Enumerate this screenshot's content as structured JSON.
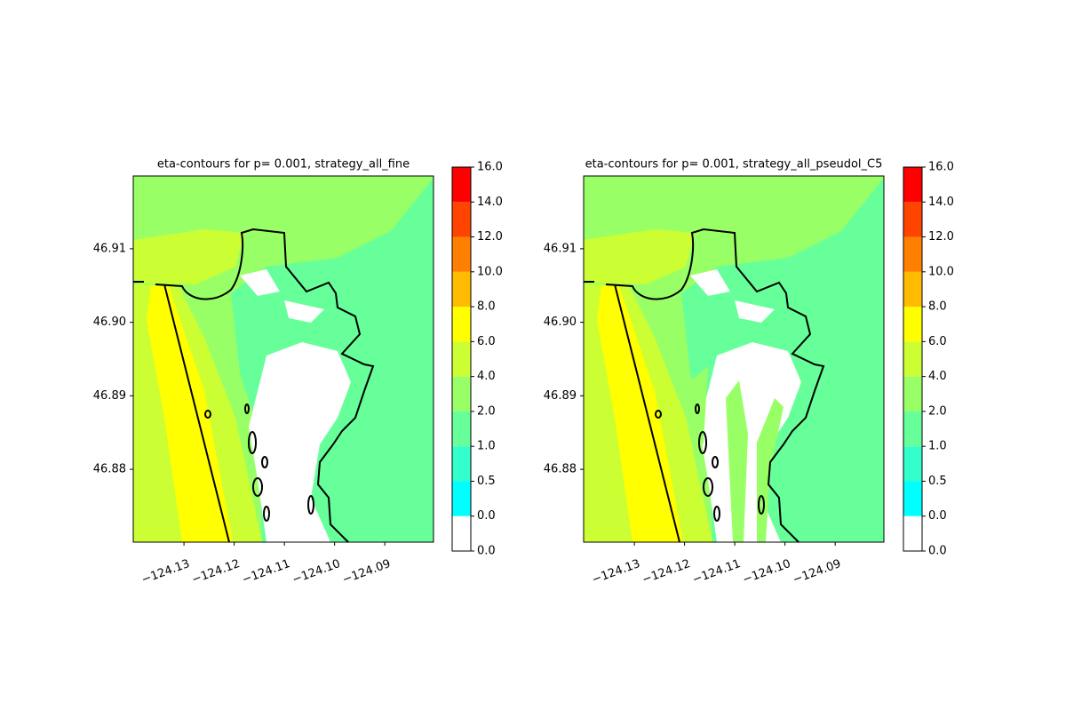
{
  "chart_data": [
    {
      "type": "contourf",
      "title": "eta-contours for p= 0.001, strategy_all_fine",
      "xlim": [
        -124.1401,
        -124.0803
      ],
      "ylim": [
        46.8701,
        46.9199
      ],
      "xticks": [
        {
          "value": -124.13,
          "label": "−124.13"
        },
        {
          "value": -124.12,
          "label": "−124.12"
        },
        {
          "value": -124.11,
          "label": "−124.11"
        },
        {
          "value": -124.1,
          "label": "−124.10"
        },
        {
          "value": -124.09,
          "label": "−124.09"
        }
      ],
      "yticks": [
        46.91,
        {
          "value": 46.9,
          "label": "46.90"
        },
        46.89,
        46.88
      ],
      "levels": [
        {
          "value": 0,
          "label": "0.0"
        },
        {
          "value": 0,
          "label": "0.0"
        },
        0.5,
        {
          "value": 1,
          "label": "1.0"
        },
        {
          "value": 2,
          "label": "2.0"
        },
        {
          "value": 4,
          "label": "4.0"
        },
        {
          "value": 6,
          "label": "6.0"
        },
        {
          "value": 8,
          "label": "8.0"
        },
        {
          "value": 10,
          "label": "10.0"
        },
        {
          "value": 12,
          "label": "12.0"
        },
        {
          "value": 14,
          "label": "14.0"
        },
        {
          "value": 16,
          "label": "16.0"
        }
      ],
      "colors": [
        "#ffffff",
        "#00ffff",
        "#33ffcc",
        "#66ff99",
        "#99ff66",
        "#ccff33",
        "#ffff00",
        "#ffbb00",
        "#ff8000",
        "#ff4400",
        "#ff0000"
      ]
    },
    {
      "type": "contourf",
      "title": "eta-contours for p= 0.001, strategy_all_pseudol_C5",
      "xlim": [
        -124.1401,
        -124.0803
      ],
      "ylim": [
        46.8701,
        46.9199
      ],
      "xticks": [
        {
          "value": -124.13,
          "label": "−124.13"
        },
        {
          "value": -124.12,
          "label": "−124.12"
        },
        {
          "value": -124.11,
          "label": "−124.11"
        },
        {
          "value": -124.1,
          "label": "−124.10"
        },
        {
          "value": -124.09,
          "label": "−124.09"
        }
      ],
      "yticks": [
        46.91,
        {
          "value": 46.9,
          "label": "46.90"
        },
        46.89,
        46.88
      ],
      "levels": [
        {
          "value": 0,
          "label": "0.0"
        },
        {
          "value": 0,
          "label": "0.0"
        },
        0.5,
        {
          "value": 1,
          "label": "1.0"
        },
        {
          "value": 2,
          "label": "2.0"
        },
        {
          "value": 4,
          "label": "4.0"
        },
        {
          "value": 6,
          "label": "6.0"
        },
        {
          "value": 8,
          "label": "8.0"
        },
        {
          "value": 10,
          "label": "10.0"
        },
        {
          "value": 12,
          "label": "12.0"
        },
        {
          "value": 14,
          "label": "14.0"
        },
        {
          "value": 16,
          "label": "16.0"
        }
      ],
      "colors": [
        "#ffffff",
        "#00ffff",
        "#33ffcc",
        "#66ff99",
        "#99ff66",
        "#ccff33",
        "#ffff00",
        "#ffbb00",
        "#ff8000",
        "#ff4400",
        "#ff0000"
      ]
    }
  ]
}
